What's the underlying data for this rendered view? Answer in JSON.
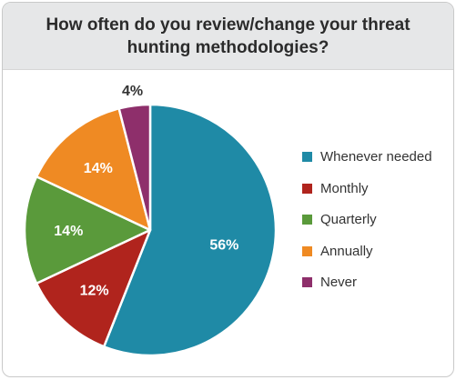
{
  "title": "How often do you review/change your threat hunting methodologies?",
  "chart_data": {
    "type": "pie",
    "title": "How often do you review/change your threat hunting methodologies?",
    "slices": [
      {
        "label": "Whenever needed",
        "value": 56,
        "display": "56%",
        "color": "#1f8aa6"
      },
      {
        "label": "Monthly",
        "value": 12,
        "display": "12%",
        "color": "#b0241d"
      },
      {
        "label": "Quarterly",
        "value": 14,
        "display": "14%",
        "color": "#5a9a3b"
      },
      {
        "label": "Annually",
        "value": 14,
        "display": "14%",
        "color": "#ef8a23"
      },
      {
        "label": "Never",
        "value": 4,
        "display": "4%",
        "color": "#8e2f6b"
      }
    ],
    "legend_position": "right",
    "start_angle": "top",
    "direction": "clockwise"
  }
}
